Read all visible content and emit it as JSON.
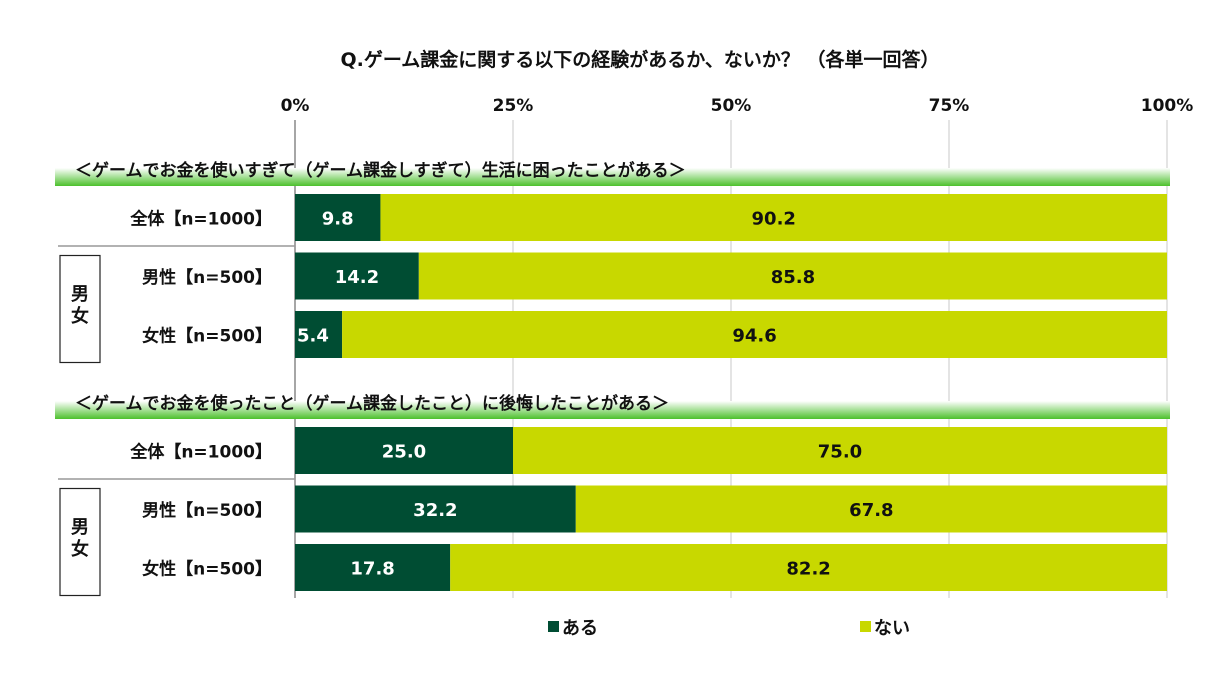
{
  "chart_data": {
    "type": "bar",
    "stacked": true,
    "orientation": "horizontal",
    "title": "Q.ゲーム課金に関する以下の経験があるか、ないか？ （各単一回答）",
    "xlim": [
      0,
      100
    ],
    "x_ticks": [
      "0%",
      "25%",
      "50%",
      "75%",
      "100%"
    ],
    "grid": true,
    "legend_position": "bottom",
    "colors": {
      "aru": "#004d33",
      "nai": "#c8d800",
      "header_green": "#5ccb3c"
    },
    "legend": [
      "ある",
      "ない"
    ],
    "group_label": "男女",
    "sections": [
      {
        "title": "＜ゲームでお金を使いすぎて（ゲーム課金しすぎて）生活に困ったことがある＞",
        "rows": [
          {
            "label": "全体【n=1000】",
            "values": [
              9.8,
              90.2
            ]
          },
          {
            "label": "男性【n=500】",
            "values": [
              14.2,
              85.8
            ]
          },
          {
            "label": "女性【n=500】",
            "values": [
              5.4,
              94.6
            ]
          }
        ]
      },
      {
        "title": "＜ゲームでお金を使ったこと（ゲーム課金したこと）に後悔したことがある＞",
        "rows": [
          {
            "label": "全体【n=1000】",
            "values": [
              25.0,
              75.0
            ]
          },
          {
            "label": "男性【n=500】",
            "values": [
              32.2,
              67.8
            ]
          },
          {
            "label": "女性【n=500】",
            "values": [
              17.8,
              82.2
            ]
          }
        ]
      }
    ]
  }
}
